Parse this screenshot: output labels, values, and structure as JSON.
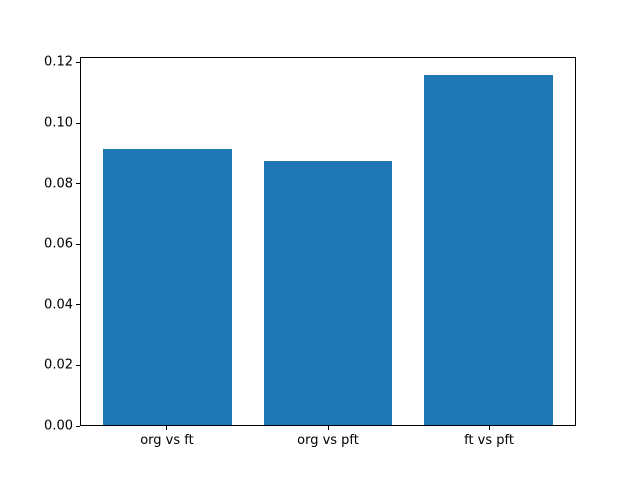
{
  "figure": {
    "background": "#ffffff",
    "spine_color": "#000000",
    "tick_color": "#000000"
  },
  "chart_data": {
    "type": "bar",
    "title": "",
    "xlabel": "",
    "ylabel": "",
    "categories": [
      "org vs ft",
      "org vs pft",
      "ft vs pft"
    ],
    "x": [
      0,
      1,
      2
    ],
    "values": [
      0.0915,
      0.0876,
      0.116
    ],
    "bar_color": "#1f77b4",
    "bar_width": 0.8,
    "xlim": [
      -0.54,
      2.54
    ],
    "ylim": [
      0,
      0.1218
    ],
    "yticks": [
      0,
      0.02,
      0.04,
      0.06,
      0.08,
      0.1,
      0.12
    ],
    "ytick_labels": [
      "0.00",
      "0.02",
      "0.04",
      "0.06",
      "0.08",
      "0.10",
      "0.12"
    ],
    "grid": false,
    "legend": "none"
  }
}
